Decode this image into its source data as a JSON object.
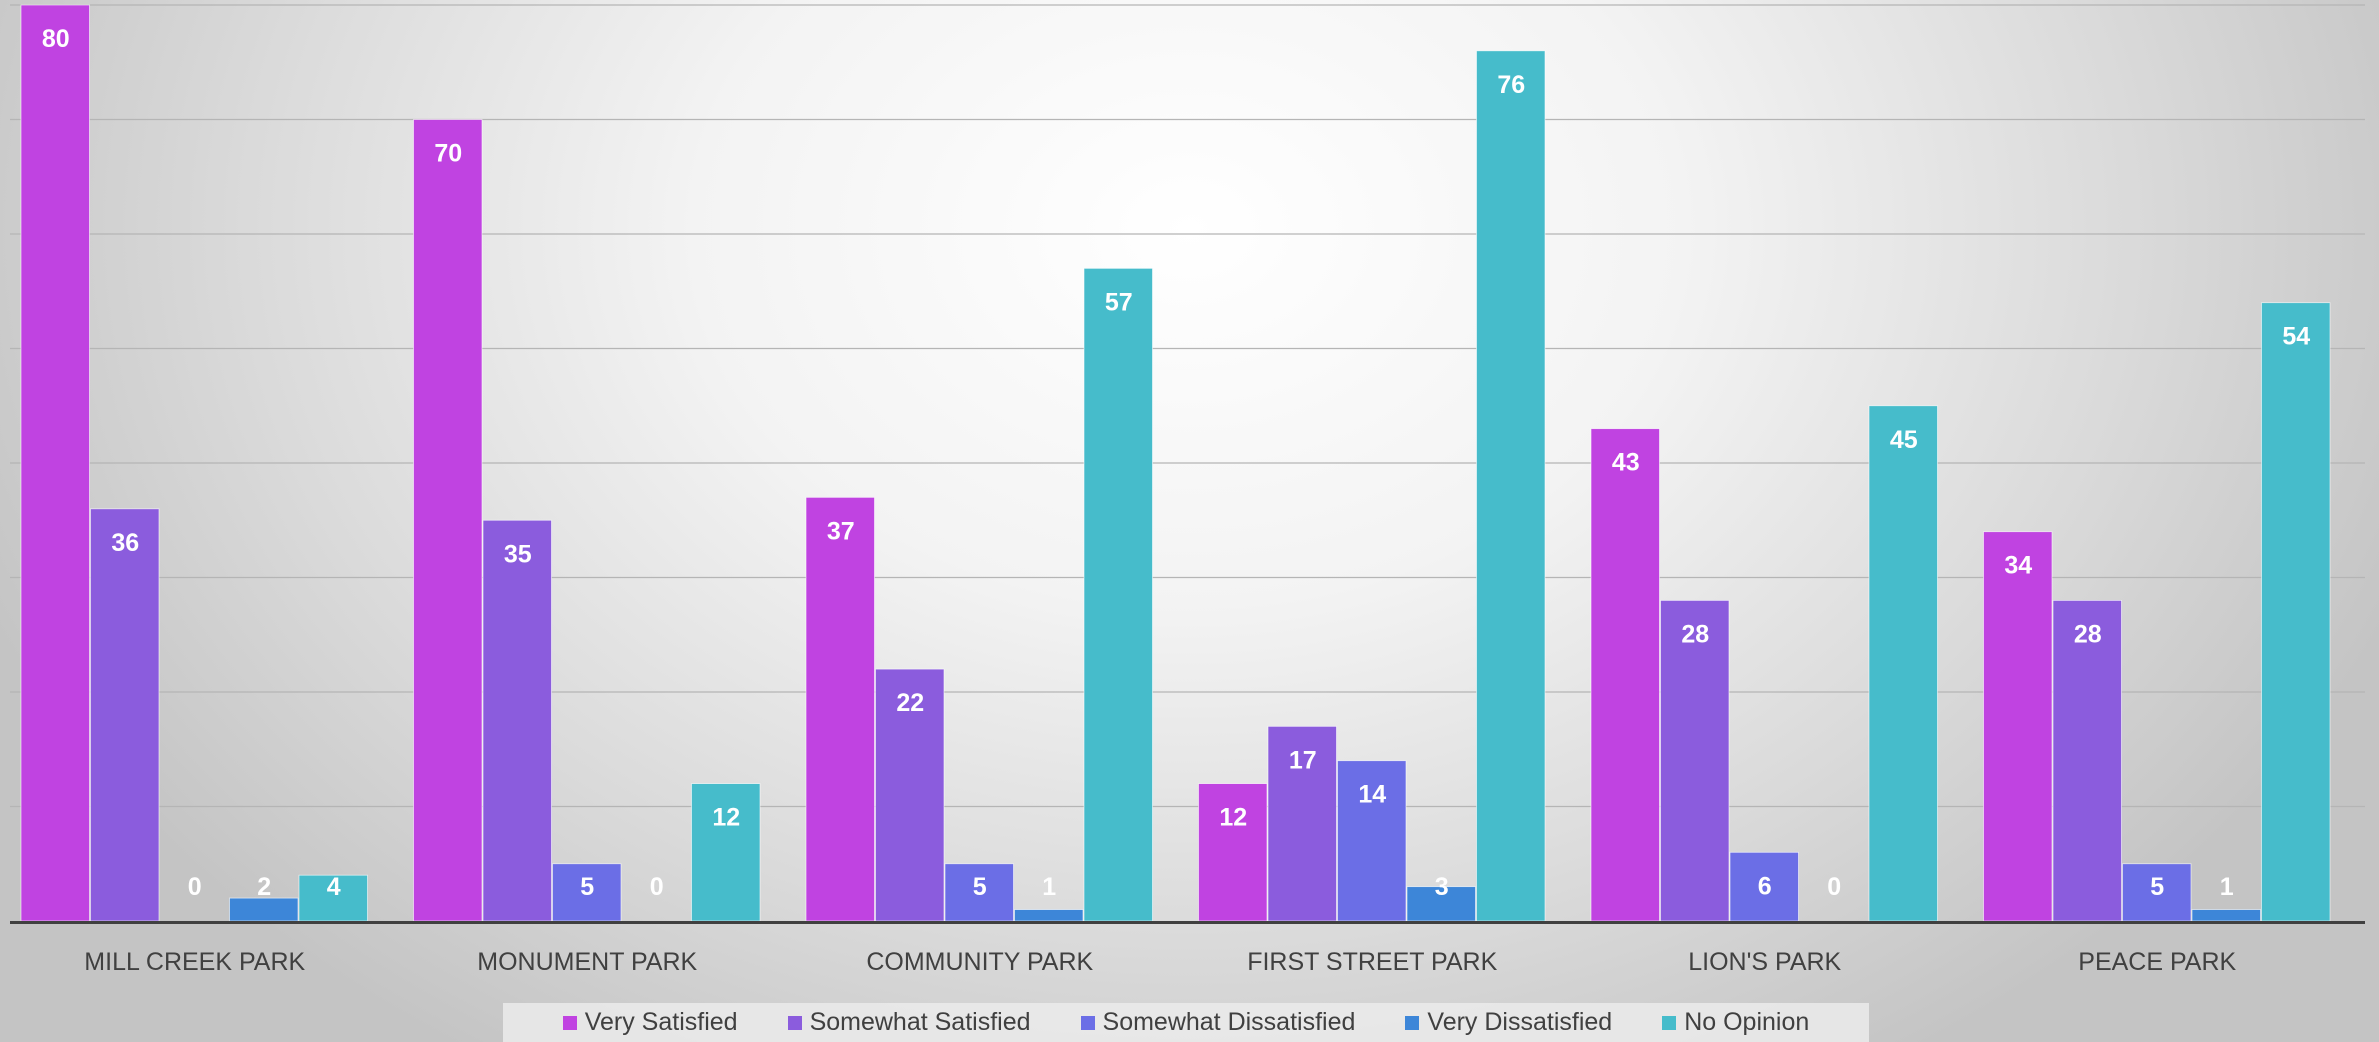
{
  "chart_data": {
    "type": "bar",
    "categories": [
      "MILL CREEK PARK",
      "MONUMENT PARK",
      "COMMUNITY PARK",
      "FIRST STREET PARK",
      "LION'S PARK",
      "PEACE PARK"
    ],
    "series": [
      {
        "name": "Very Satisfied",
        "color": "#c043e1",
        "values": [
          80,
          70,
          37,
          12,
          43,
          34
        ]
      },
      {
        "name": "Somewhat Satisfied",
        "color": "#8b5cdd",
        "values": [
          36,
          35,
          22,
          17,
          28,
          28
        ]
      },
      {
        "name": "Somewhat Dissatisfied",
        "color": "#6b6ee6",
        "values": [
          0,
          5,
          5,
          14,
          6,
          5
        ]
      },
      {
        "name": "Very Dissatisfied",
        "color": "#3d86d8",
        "values": [
          2,
          0,
          1,
          3,
          0,
          1
        ]
      },
      {
        "name": "No Opinion",
        "color": "#46bccb",
        "values": [
          4,
          12,
          57,
          76,
          45,
          54
        ]
      }
    ],
    "ylim": [
      0,
      80
    ],
    "grid": true,
    "legend_position": "bottom",
    "title": "",
    "xlabel": "",
    "ylabel": ""
  }
}
